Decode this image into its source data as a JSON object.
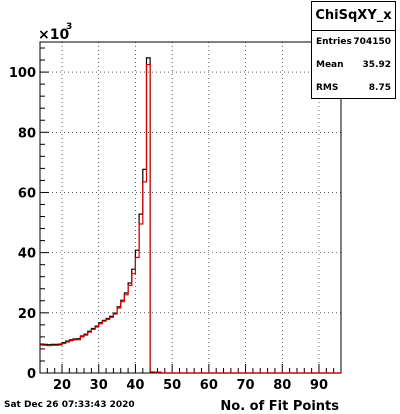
{
  "chart_data": {
    "type": "histogram",
    "xlabel": "No. of Fit Points",
    "ylabel": "",
    "xlim": [
      14,
      96
    ],
    "ylim": [
      0,
      110
    ],
    "y_scale_label": "×10",
    "y_scale_exponent": "3",
    "xticks": [
      20,
      30,
      40,
      50,
      60,
      70,
      80,
      90
    ],
    "yticks": [
      0,
      20,
      40,
      60,
      80,
      100
    ],
    "grid": true,
    "bin_width": 1,
    "series": [
      {
        "x": [
          14,
          15,
          16,
          15,
          17,
          18,
          19,
          20,
          21,
          22,
          23,
          24,
          25,
          26,
          27,
          28,
          29,
          30,
          31,
          32,
          33,
          34,
          35,
          36,
          37,
          38,
          39,
          40,
          41,
          42,
          43,
          44,
          45,
          46
        ],
        "values": [
          9.6,
          9.5,
          9.4,
          9.5,
          9.5,
          9.5,
          9.6,
          10.1,
          10.6,
          11.0,
          11.3,
          11.4,
          12.3,
          12.9,
          13.9,
          14.8,
          15.6,
          16.7,
          17.5,
          18.1,
          18.8,
          19.9,
          22.0,
          24.2,
          26.6,
          29.9,
          34.5,
          40.8,
          52.8,
          67.7,
          104.7,
          0.3,
          0.2,
          0.2
        ],
        "color": "#000000"
      },
      {
        "x": [
          14,
          15,
          16,
          17,
          18,
          19,
          20,
          21,
          22,
          23,
          24,
          25,
          26,
          27,
          28,
          29,
          30,
          31,
          32,
          33,
          34,
          35,
          36,
          37,
          38,
          39,
          40,
          41,
          42,
          43,
          44,
          45,
          46
        ],
        "values": [
          9.3,
          9.2,
          9.1,
          9.2,
          9.2,
          9.3,
          9.8,
          10.3,
          10.7,
          11.0,
          11.1,
          12.0,
          12.6,
          13.6,
          14.5,
          15.3,
          16.4,
          17.2,
          17.8,
          18.5,
          19.6,
          21.6,
          23.7,
          26.0,
          29.1,
          33.0,
          38.4,
          49.5,
          63.5,
          102.5,
          0.4,
          0.3,
          0.3
        ],
        "color": "#dd0000"
      }
    ]
  },
  "stats": {
    "title": "ChiSqXY_x",
    "entries_label": "Entries",
    "entries_value": "704150",
    "mean_label": "Mean",
    "mean_value": "35.92",
    "rms_label": "RMS",
    "rms_value": "8.75"
  },
  "datestamp": "Sat Dec 26 07:33:43 2020"
}
